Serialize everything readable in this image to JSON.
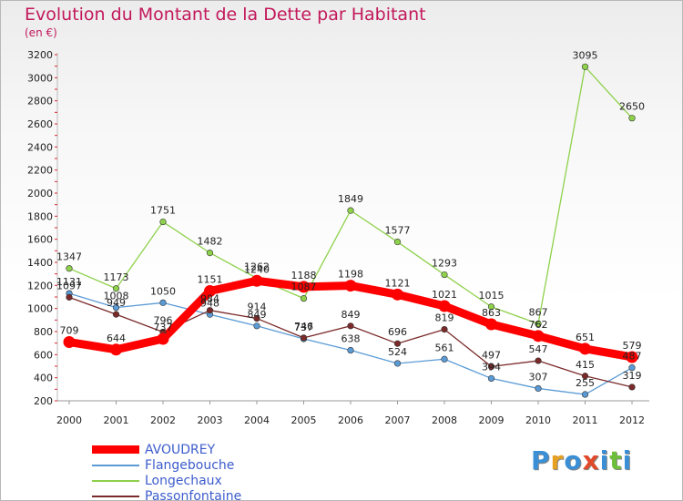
{
  "title": "Evolution du Montant de la Dette par Habitant",
  "subtitle": "(en €)",
  "logo": "Proxiti",
  "chart_data": {
    "type": "line",
    "title": "Evolution du Montant de la Dette par Habitant",
    "subtitle": "(en €)",
    "xlabel": "",
    "ylabel": "",
    "x": [
      "2000",
      "2001",
      "2002",
      "2003",
      "2004",
      "2005",
      "2006",
      "2007",
      "2008",
      "2009",
      "2010",
      "2011",
      "2012"
    ],
    "yticks": [
      200,
      400,
      600,
      800,
      1000,
      1200,
      1400,
      1600,
      1800,
      2000,
      2200,
      2400,
      2600,
      2800,
      3000,
      3200
    ],
    "ylim": [
      200,
      3200
    ],
    "grid": false,
    "legend_position": "bottom-left",
    "series": [
      {
        "name": "AVOUDREY",
        "color": "#ff0000",
        "values": [
          709,
          644,
          737,
          1151,
          1240,
          1188,
          1198,
          1121,
          1021,
          863,
          762,
          651,
          579
        ]
      },
      {
        "name": "Flangebouche",
        "color": "#5b9bd5",
        "values": [
          1131,
          1008,
          1050,
          948,
          849,
          737,
          638,
          524,
          561,
          394,
          307,
          255,
          487
        ]
      },
      {
        "name": "Longechaux",
        "color": "#8ed14b",
        "values": [
          1347,
          1173,
          1751,
          1482,
          1262,
          1087,
          1849,
          1577,
          1293,
          1015,
          867,
          3095,
          2650
        ]
      },
      {
        "name": "Passonfontaine",
        "color": "#7b2a2a",
        "values": [
          1097,
          949,
          796,
          984,
          914,
          746,
          849,
          696,
          819,
          497,
          547,
          415,
          319
        ]
      }
    ]
  }
}
